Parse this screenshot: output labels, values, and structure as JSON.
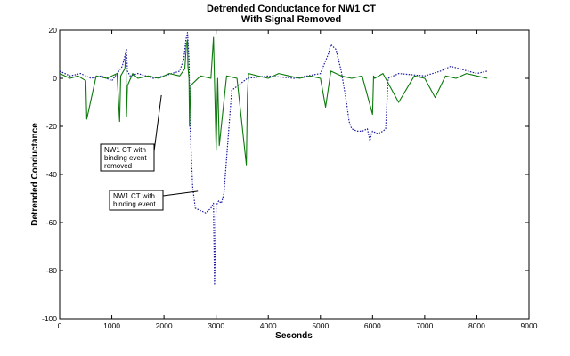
{
  "chart_data": {
    "type": "line",
    "title": [
      "Detrended Conductance for NW1 CT",
      "With Signal Removed"
    ],
    "xlabel": "Seconds",
    "ylabel": "Detrended Conductance",
    "xlim": [
      0,
      9000
    ],
    "ylim": [
      -100,
      20
    ],
    "xticks": [
      0,
      1000,
      2000,
      3000,
      4000,
      5000,
      6000,
      7000,
      8000,
      9000
    ],
    "yticks": [
      -100,
      -80,
      -60,
      -40,
      -20,
      0,
      20
    ],
    "grid": false,
    "series": [
      {
        "style": "dotted",
        "color": "#1a1a9e",
        "x": [
          0,
          200,
          400,
          600,
          800,
          1000,
          1200,
          1280,
          1300,
          1350,
          1500,
          1800,
          2000,
          2300,
          2380,
          2420,
          2450,
          2480,
          2500,
          2550,
          2600,
          2700,
          2800,
          2900,
          2950,
          2970,
          3000,
          3050,
          3100,
          3150,
          3300,
          3600,
          4000,
          4500,
          5000,
          5150,
          5200,
          5300,
          5400,
          5500,
          5550,
          5600,
          5700,
          5800,
          5900,
          5950,
          5980,
          6000,
          6100,
          6200,
          6250,
          6300,
          6500,
          7000,
          7300,
          7500,
          8000,
          8200
        ],
        "y": [
          3,
          1,
          2,
          0,
          1,
          -1,
          5,
          12,
          3,
          1,
          2,
          0,
          1,
          3,
          8,
          16,
          19,
          8,
          -20,
          -45,
          -54,
          -55,
          -56,
          -54,
          -52,
          -86,
          -53,
          -51,
          -52,
          -48,
          -5,
          0,
          1,
          0,
          2,
          10,
          14,
          12,
          3,
          -10,
          -18,
          -21,
          -22,
          -22,
          -21,
          -26,
          -23,
          -22,
          -23,
          -22,
          -21,
          0,
          2,
          1,
          3,
          5,
          2,
          3
        ]
      },
      {
        "style": "solid",
        "color": "#0b7a0b",
        "x": [
          0,
          200,
          350,
          500,
          520,
          700,
          900,
          1100,
          1150,
          1170,
          1250,
          1270,
          1280,
          1300,
          1400,
          1500,
          1700,
          1900,
          2100,
          2300,
          2400,
          2430,
          2450,
          2460,
          2480,
          2490,
          2510,
          2700,
          2900,
          2950,
          3000,
          3030,
          3060,
          3200,
          3400,
          3580,
          3600,
          3620,
          3800,
          4000,
          4200,
          4400,
          4600,
          4800,
          5000,
          5100,
          5200,
          5400,
          5600,
          5800,
          6000,
          6020,
          6040,
          6200,
          6500,
          6800,
          7000,
          7200,
          7400,
          7600,
          7800,
          8000,
          8200
        ],
        "y": [
          2,
          0,
          1,
          -1,
          -17,
          1,
          0,
          2,
          -18,
          1,
          4,
          11,
          -16,
          -3,
          2,
          0,
          1,
          0,
          2,
          1,
          4,
          14,
          16,
          5,
          0,
          -20,
          -3,
          1,
          0,
          17,
          -30,
          0,
          -28,
          1,
          0,
          -36,
          -7,
          2,
          1,
          0,
          2,
          1,
          0,
          1,
          0,
          -12,
          3,
          1,
          0,
          1,
          -15,
          1,
          0,
          2,
          -10,
          1,
          0,
          -8,
          1,
          0,
          2,
          1,
          0
        ]
      }
    ],
    "annotations": [
      {
        "lines": [
          "NW1 CT with",
          "binding event",
          "removed"
        ],
        "points_to": [
          1950,
          -7
        ]
      },
      {
        "lines": [
          "NW1 CT with",
          "binding event"
        ],
        "points_to": [
          2650,
          -47
        ]
      }
    ]
  }
}
